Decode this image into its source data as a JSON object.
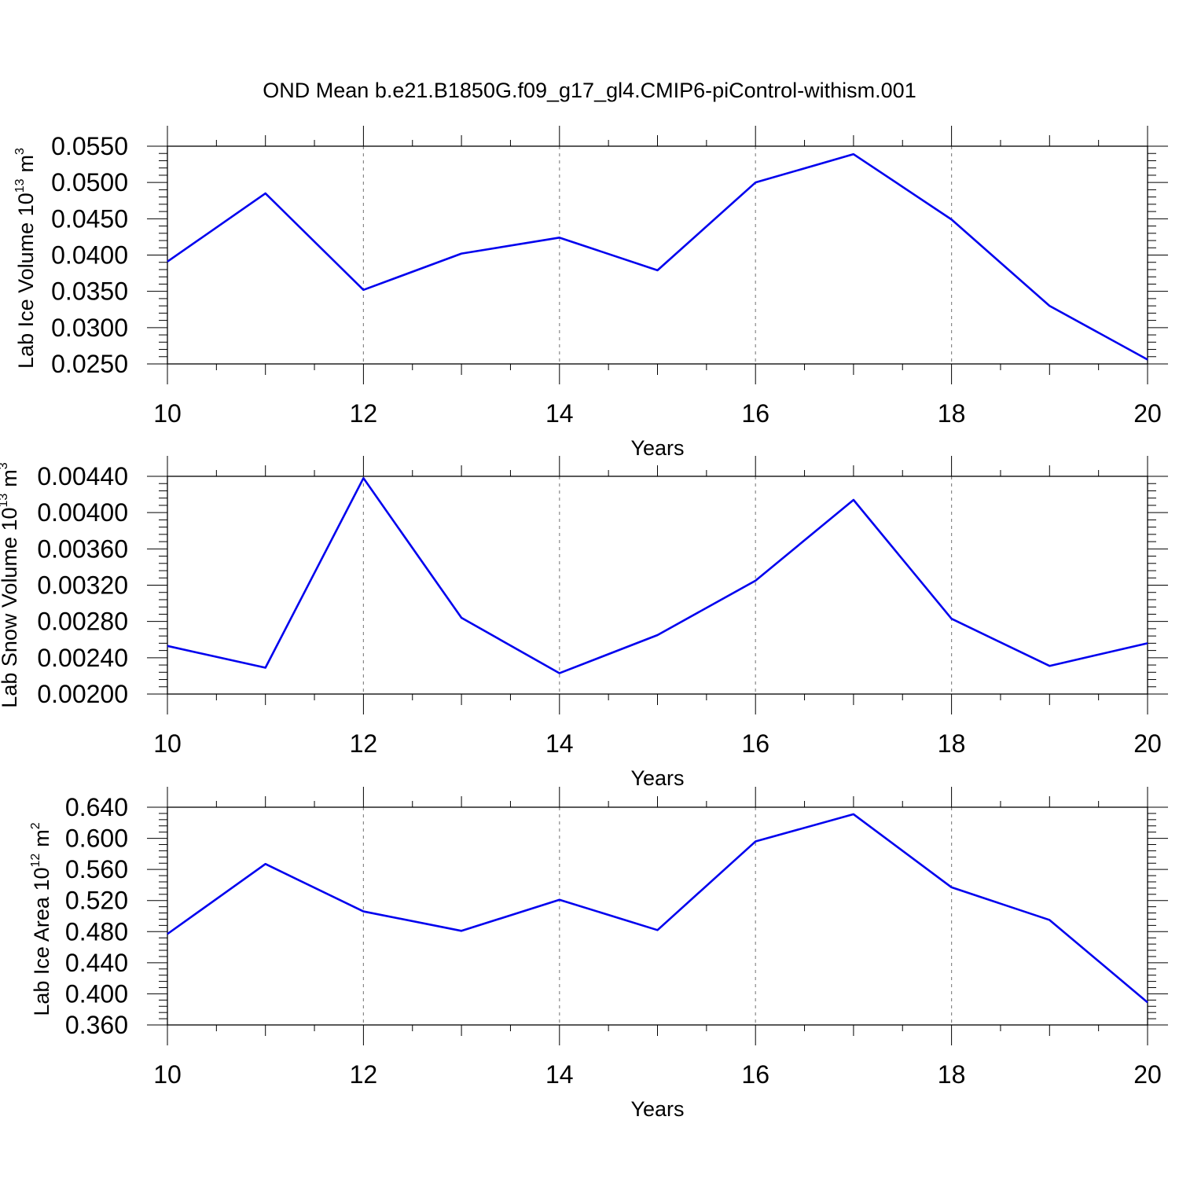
{
  "figure": {
    "title": "OND Mean b.e21.B1850G.f09_g17_gl4.CMIP6-piControl-withism.001"
  },
  "chart_data": [
    {
      "type": "line",
      "xlabel": "Years",
      "ylabel": "Lab Ice Volume 10",
      "ylabel_sup": "13",
      "ylabel_unit": "m",
      "ylabel_unit_sup": "3",
      "xlim": [
        10,
        20
      ],
      "ylim": [
        0.025,
        0.055
      ],
      "x_ticks": [
        "10",
        "12",
        "14",
        "16",
        "18",
        "20"
      ],
      "y_ticks": [
        "0.0550",
        "0.0500",
        "0.0450",
        "0.0400",
        "0.0350",
        "0.0300",
        "0.0250"
      ],
      "grid": "vertical dashed at labeled x ticks",
      "x": [
        10,
        11,
        12,
        13,
        14,
        15,
        16,
        17,
        18,
        19,
        20
      ],
      "series": [
        {
          "values": [
            0.0391,
            0.0485,
            0.0352,
            0.0402,
            0.0424,
            0.0379,
            0.05,
            0.0539,
            0.0449,
            0.033,
            0.0256
          ]
        }
      ]
    },
    {
      "type": "line",
      "xlabel": "Years",
      "ylabel": "Lab Snow Volume 10",
      "ylabel_sup": "13",
      "ylabel_unit": "m",
      "ylabel_unit_sup": "3",
      "xlim": [
        10,
        20
      ],
      "ylim": [
        0.002,
        0.0044
      ],
      "x_ticks": [
        "10",
        "12",
        "14",
        "16",
        "18",
        "20"
      ],
      "y_ticks": [
        "0.00440",
        "0.00400",
        "0.00360",
        "0.00320",
        "0.00280",
        "0.00240",
        "0.00200"
      ],
      "grid": "vertical dashed at labeled x ticks",
      "x": [
        10,
        11,
        12,
        13,
        14,
        15,
        16,
        17,
        18,
        19,
        20
      ],
      "series": [
        {
          "values": [
            0.00253,
            0.00229,
            0.00438,
            0.00284,
            0.00223,
            0.00265,
            0.00325,
            0.00414,
            0.00283,
            0.00231,
            0.00256
          ]
        }
      ]
    },
    {
      "type": "line",
      "xlabel": "Years",
      "ylabel": "Lab Ice Area 10",
      "ylabel_sup": "12",
      "ylabel_unit": "m",
      "ylabel_unit_sup": "2",
      "xlim": [
        10,
        20
      ],
      "ylim": [
        0.36,
        0.64
      ],
      "x_ticks": [
        "10",
        "12",
        "14",
        "16",
        "18",
        "20"
      ],
      "y_ticks": [
        "0.640",
        "0.600",
        "0.560",
        "0.520",
        "0.480",
        "0.440",
        "0.400",
        "0.360"
      ],
      "grid": "vertical dashed at labeled x ticks",
      "x": [
        10,
        11,
        12,
        13,
        14,
        15,
        16,
        17,
        18,
        19,
        20
      ],
      "series": [
        {
          "values": [
            0.477,
            0.567,
            0.506,
            0.481,
            0.521,
            0.482,
            0.596,
            0.631,
            0.537,
            0.495,
            0.389
          ]
        }
      ]
    }
  ],
  "colors": {
    "line": "#0000ee",
    "axis": "#000000",
    "grid": "#888888"
  }
}
